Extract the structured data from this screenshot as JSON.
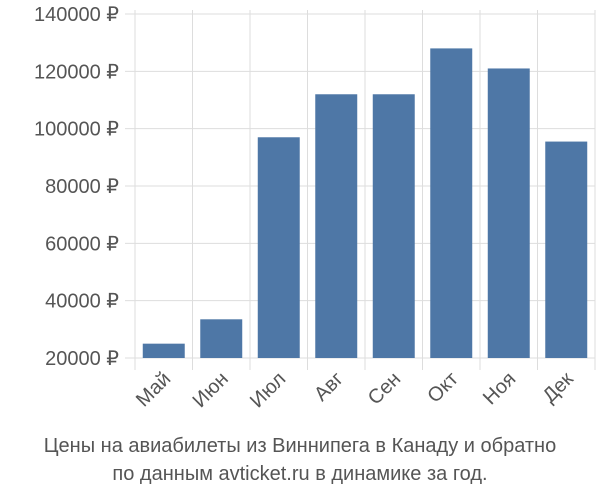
{
  "chart_data": {
    "type": "bar",
    "categories": [
      "Май",
      "Июн",
      "Июл",
      "Авг",
      "Сен",
      "Окт",
      "Ноя",
      "Дек"
    ],
    "values": [
      25000,
      33500,
      97000,
      112000,
      112000,
      128000,
      121000,
      95500
    ],
    "ylim": [
      20000,
      140000
    ],
    "yticks": [
      20000,
      40000,
      60000,
      80000,
      100000,
      120000,
      140000
    ],
    "ytick_labels": [
      "20000 ₽",
      "40000 ₽",
      "60000 ₽",
      "80000 ₽",
      "100000 ₽",
      "120000 ₽",
      "140000 ₽"
    ],
    "grid": true,
    "bar_color": "#4e77a6",
    "grid_color": "#dddddd"
  },
  "caption": {
    "line1": "Цены на авиабилеты из Виннипега в Канаду и обратно",
    "line2": "по данным avticket.ru в динамике за год."
  }
}
